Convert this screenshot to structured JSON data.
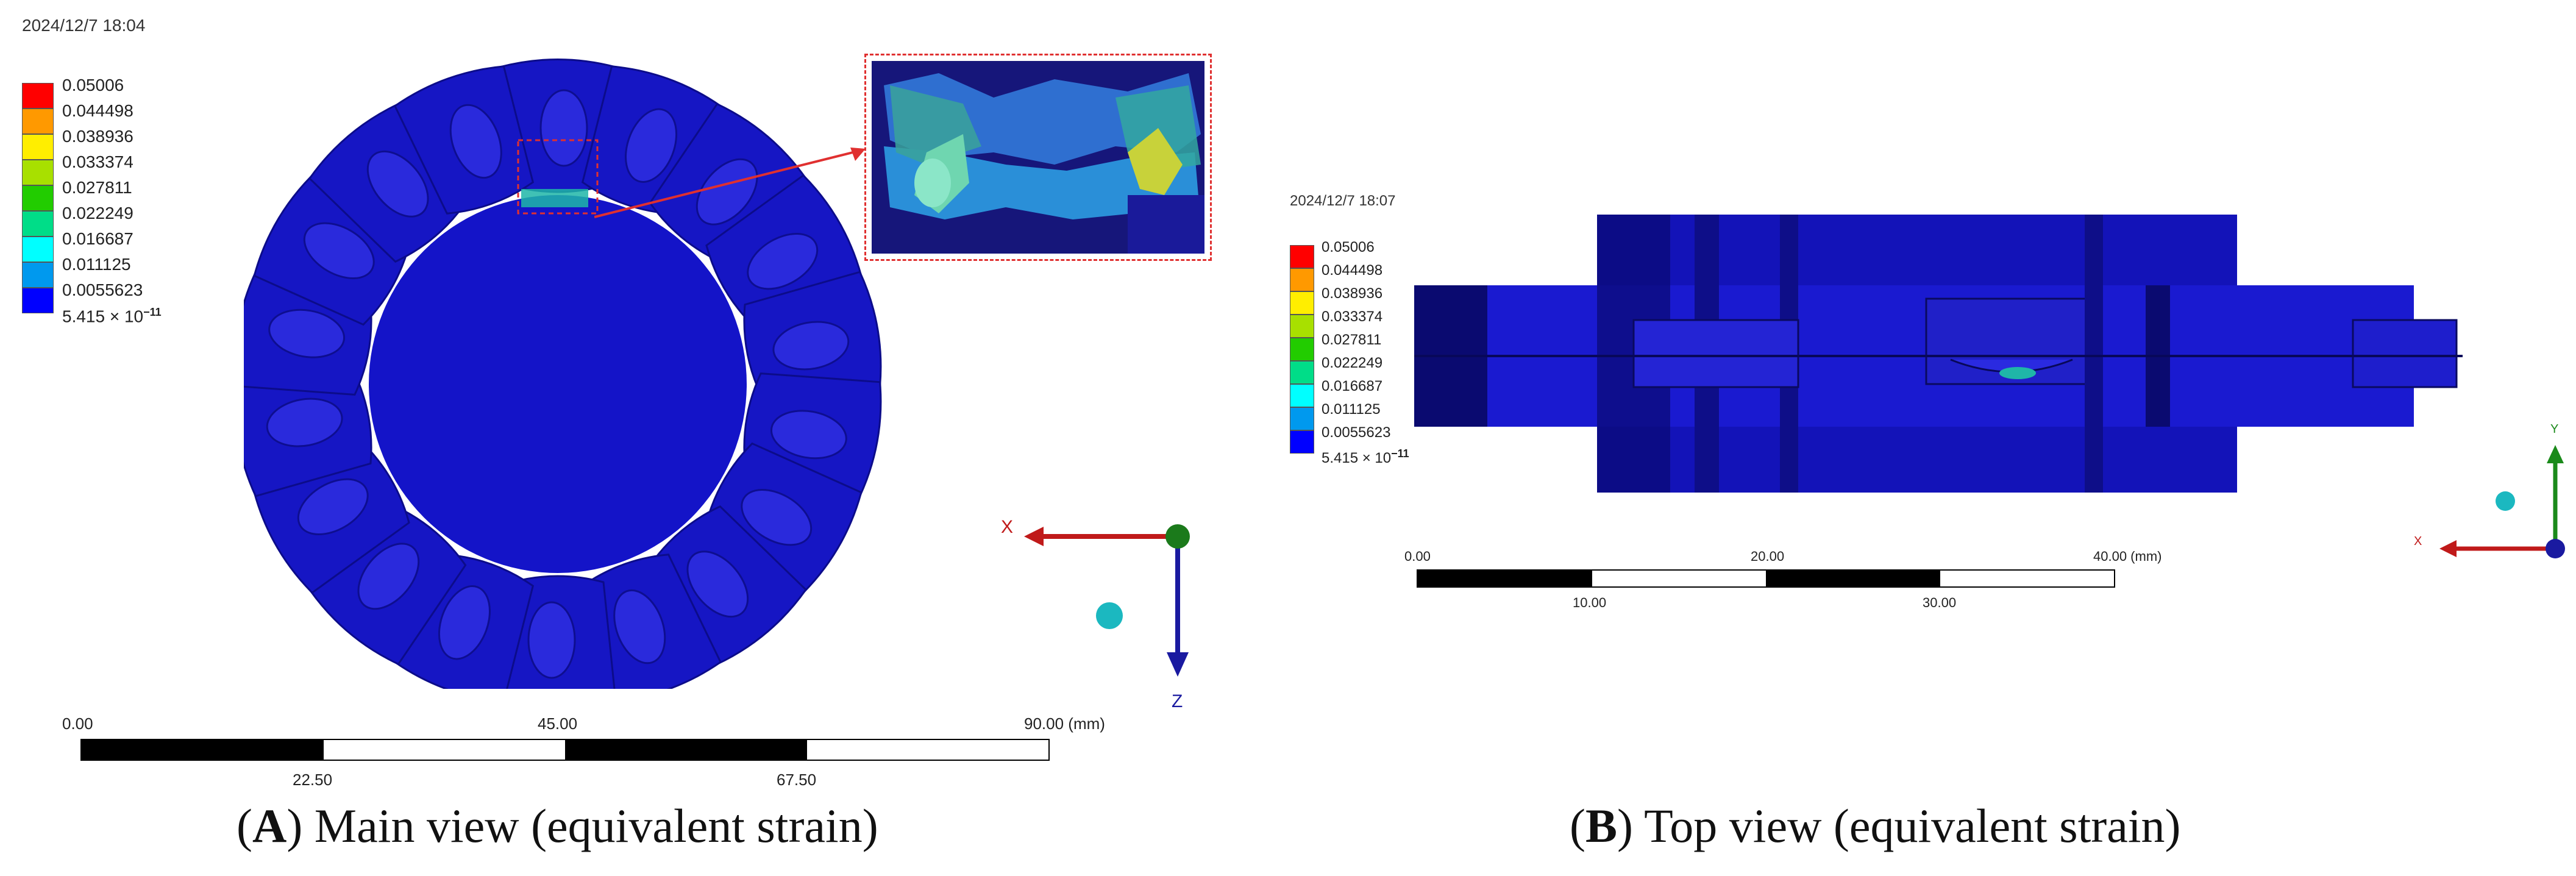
{
  "figure": {
    "panels": [
      {
        "id": "A",
        "timestamp": "2024/12/7 18:04",
        "legend": [
          "0.05006",
          "0.044498",
          "0.038936",
          "0.033374",
          "0.027811",
          "0.022249",
          "0.016687",
          "0.011125",
          "0.0055623"
        ],
        "legend_min_base": "5.415 × 10",
        "legend_min_exp": "−11",
        "scale_top": [
          "0.00",
          "45.00",
          "90.00 (mm)"
        ],
        "scale_bottom": [
          "22.50",
          "67.50"
        ],
        "axes": {
          "horizontal": "X",
          "vertical": "Z"
        },
        "caption_letter": "A",
        "caption_text": ") Main view (equivalent strain)",
        "caption_open": "("
      },
      {
        "id": "B",
        "timestamp": "2024/12/7 18:07",
        "legend": [
          "0.05006",
          "0.044498",
          "0.038936",
          "0.033374",
          "0.027811",
          "0.022249",
          "0.016687",
          "0.011125",
          "0.0055623"
        ],
        "legend_min_base": "5.415 × 10",
        "legend_min_exp": "−11",
        "scale_top": [
          "0.00",
          "20.00",
          "40.00 (mm)"
        ],
        "scale_bottom": [
          "10.00",
          "30.00"
        ],
        "axes": {
          "horizontal": "X",
          "vertical": "Y"
        },
        "caption_letter": "B",
        "caption_text": ") Top view (equivalent strain)",
        "caption_open": "("
      }
    ],
    "legend_colors": [
      "#ff0000",
      "#ff9900",
      "#ffee00",
      "#a8e000",
      "#22cc00",
      "#00dd88",
      "#00ffff",
      "#0099ee",
      "#0000ff"
    ],
    "model_color": "#1414c8"
  }
}
